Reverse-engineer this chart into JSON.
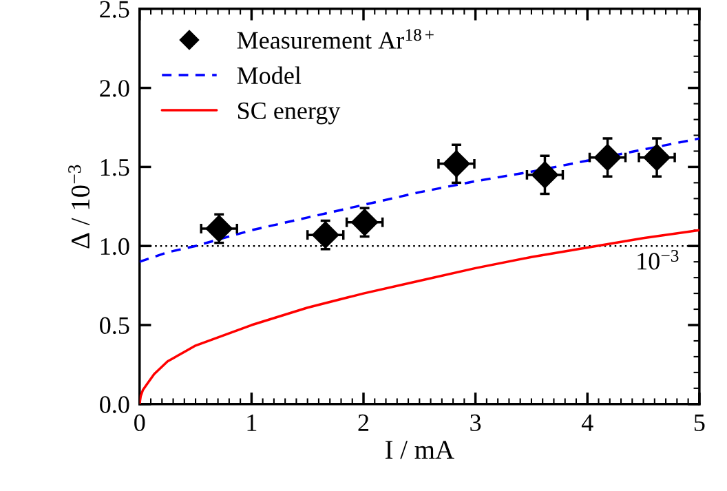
{
  "chart_data": {
    "type": "scatter",
    "xlabel": "I / mA",
    "ylabel": "Δ / 10$^{−3}$",
    "xlim": [
      0,
      5
    ],
    "xticks": [
      0,
      1,
      2,
      3,
      4,
      5
    ],
    "ylim": [
      0,
      2.5
    ],
    "yticks": [
      {
        "value": 0,
        "label": "0.0"
      },
      0.5,
      {
        "value": 1,
        "label": "1.0"
      },
      1.5,
      {
        "value": 2,
        "label": "2.0"
      },
      2.5
    ],
    "grid": false,
    "legend": "top left",
    "series": [
      {
        "name": "Measurement Ar$^{18+}$",
        "type": "scatter",
        "color": "#000000",
        "marker": "diamond",
        "x": [
          0.71,
          1.66,
          2.01,
          2.83,
          3.62,
          4.18,
          4.62
        ],
        "values": [
          1.11,
          1.07,
          1.15,
          1.52,
          1.45,
          1.56,
          1.56
        ],
        "errors": [
          0.09,
          0.09,
          0.09,
          0.12,
          0.12,
          0.12,
          0.12
        ],
        "xerrors": [
          0.16,
          0.16,
          0.16,
          0.16,
          0.16,
          0.16,
          0.16
        ]
      },
      {
        "name": "Model",
        "type": "line",
        "color": "#0000ff",
        "line_style": "dashed",
        "x": [
          0,
          0.25,
          0.5,
          1,
          1.5,
          2,
          2.5,
          3,
          3.5,
          4,
          4.5,
          5
        ],
        "values": [
          0.9,
          0.96,
          1.0,
          1.1,
          1.18,
          1.26,
          1.34,
          1.41,
          1.47,
          1.54,
          1.61,
          1.68
        ]
      },
      {
        "name": "SC energy",
        "type": "line",
        "color": "#ff0000",
        "line_style": "solid",
        "x": [
          0,
          0.01,
          0.03,
          0.06,
          0.13,
          0.25,
          0.5,
          1,
          1.5,
          2,
          2.5,
          3,
          3.5,
          4,
          4.5,
          5
        ],
        "values": [
          0,
          0.05,
          0.09,
          0.12,
          0.19,
          0.27,
          0.37,
          0.5,
          0.61,
          0.7,
          0.78,
          0.86,
          0.93,
          0.99,
          1.05,
          1.1
        ]
      }
    ],
    "ref_lines": [
      {
        "axis": "y",
        "value": 1.0,
        "label": "10$^{−3}$",
        "color": "#000000",
        "line_style": "dotted"
      }
    ]
  }
}
